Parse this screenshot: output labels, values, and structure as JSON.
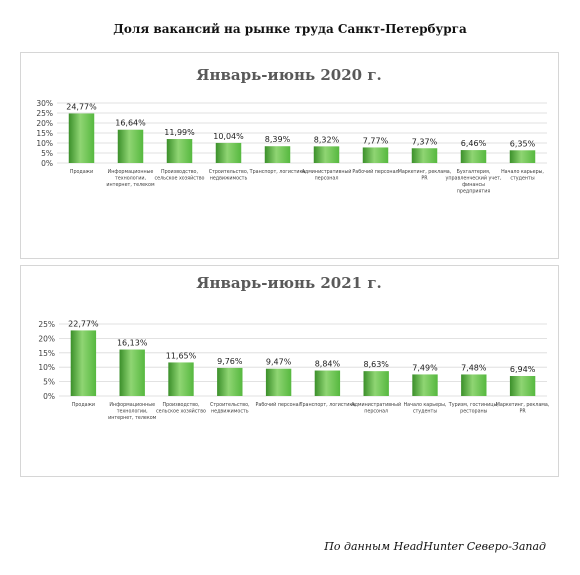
{
  "page": {
    "title": "Доля вакансий на рынке труда Санкт-Петербурга",
    "source": "По данным HeadHunter Северо-Запад"
  },
  "colors": {
    "bar": "#56b83f",
    "bar_light": "#8fd573",
    "bar_dark": "#3b8f2a",
    "grid": "#d9d9d9",
    "title": "#595959",
    "text": "#404040"
  },
  "chart_data": [
    {
      "type": "bar",
      "title": "Январь-июнь 2020 г.",
      "ylim": [
        0,
        30
      ],
      "yticks": [
        "0%",
        "5%",
        "10%",
        "15%",
        "20%",
        "25%",
        "30%"
      ],
      "grid": true,
      "categories": [
        [
          "Продажи"
        ],
        [
          "Информационные",
          "технологии,",
          "интернет, телеком"
        ],
        [
          "Производство,",
          "сельское хозяйство"
        ],
        [
          "Строительство,",
          "недвижимость"
        ],
        [
          "Транспорт, логистика"
        ],
        [
          "Административный",
          "персонал"
        ],
        [
          "Рабочий персонал"
        ],
        [
          "Маркетинг, реклама,",
          "PR"
        ],
        [
          "Бухгалтерия,",
          "управленческий учет,",
          "финансы",
          "предприятия"
        ],
        [
          "Начало карьеры,",
          "студенты"
        ]
      ],
      "values": [
        24.77,
        16.64,
        11.99,
        10.04,
        8.39,
        8.32,
        7.77,
        7.37,
        6.46,
        6.35
      ],
      "labels": [
        "24,77%",
        "16,64%",
        "11,99%",
        "10,04%",
        "8,39%",
        "8,32%",
        "7,77%",
        "7,37%",
        "6,46%",
        "6,35%"
      ]
    },
    {
      "type": "bar",
      "title": "Январь-июнь 2021 г.",
      "ylim": [
        0,
        25
      ],
      "yticks": [
        "0%",
        "5%",
        "10%",
        "15%",
        "20%",
        "25%"
      ],
      "grid": true,
      "categories": [
        [
          "Продажи"
        ],
        [
          "Информационные",
          "технологии,",
          "интернет, телеком"
        ],
        [
          "Производство,",
          "сельское хозяйство"
        ],
        [
          "Строительство,",
          "недвижимость"
        ],
        [
          "Рабочий персонал"
        ],
        [
          "Транспорт, логистика"
        ],
        [
          "Административный",
          "персонал"
        ],
        [
          "Начало карьеры,",
          "студенты"
        ],
        [
          "Туризм, гостиницы,",
          "рестораны"
        ],
        [
          "Маркетинг, реклама,",
          "PR"
        ]
      ],
      "values": [
        22.77,
        16.13,
        11.65,
        9.76,
        9.47,
        8.84,
        8.63,
        7.49,
        7.48,
        6.94
      ],
      "labels": [
        "22,77%",
        "16,13%",
        "11,65%",
        "9,76%",
        "9,47%",
        "8,84%",
        "8,63%",
        "7,49%",
        "7,48%",
        "6,94%"
      ]
    }
  ]
}
